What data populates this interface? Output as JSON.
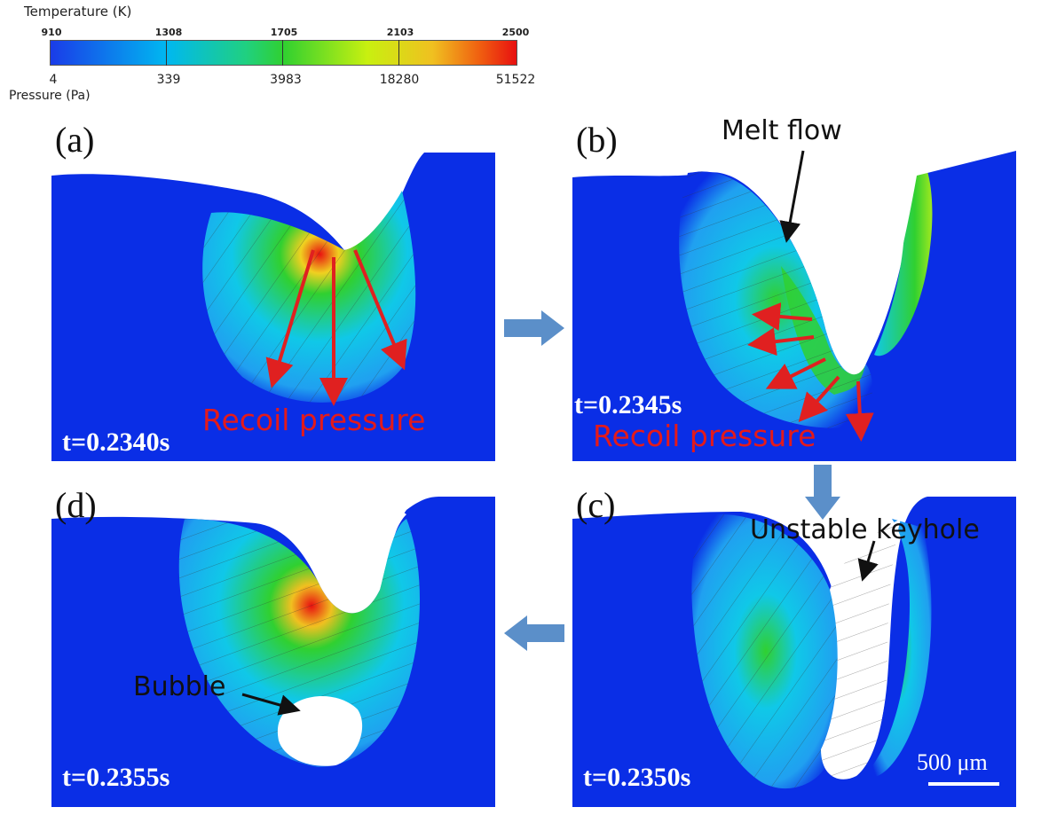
{
  "colorbar": {
    "temperature_label": "Temperature (K)",
    "temperature_ticks": [
      "910",
      "1308",
      "1705",
      "2103",
      "2500"
    ],
    "pressure_ticks": [
      "4",
      "339",
      "3983",
      "18280",
      "51522"
    ],
    "pressure_label": "Pressure (Pa)"
  },
  "panels": {
    "a": {
      "letter": "(a)",
      "time": "t=0.2340s",
      "annotation": "Recoil pressure"
    },
    "b": {
      "letter": "(b)",
      "time": "t=0.2345s",
      "annotation": "Recoil pressure",
      "annotation2": "Melt flow"
    },
    "c": {
      "letter": "(c)",
      "time": "t=0.2350s",
      "annotation": "Unstable keyhole",
      "scale": "500 μm"
    },
    "d": {
      "letter": "(d)",
      "time": "t=0.2355s",
      "annotation": "Bubble"
    }
  },
  "colors": {
    "substrate": "#0a2ee6",
    "hot": "#e81010",
    "arrow_red": "#e02020",
    "process_arrow": "#5b8fc9"
  }
}
